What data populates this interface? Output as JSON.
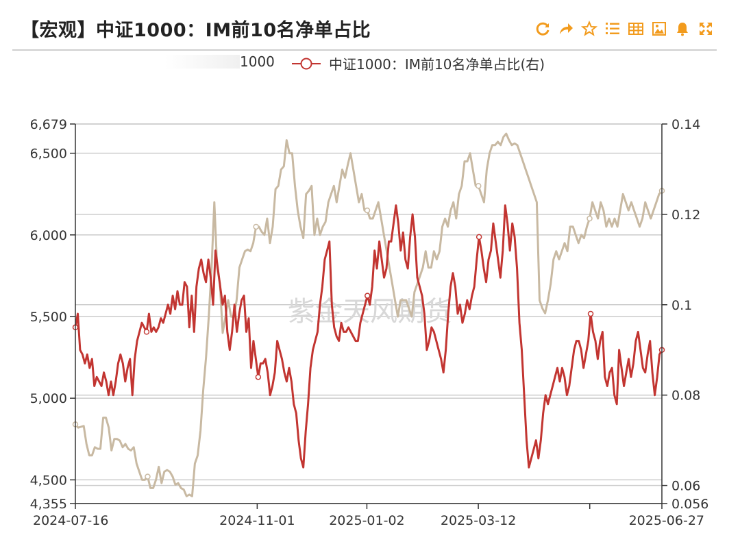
{
  "header": {
    "title": "【宏观】中证1000：IM前10名净单占比"
  },
  "toolbar": {
    "icons": [
      "refresh-icon",
      "share-icon",
      "star-icon",
      "ordered-list-icon",
      "table-icon",
      "image-icon",
      "bell-icon",
      "fullscreen-icon"
    ],
    "accent_color": "#f29b1d"
  },
  "legend": {
    "left_label": "1000",
    "right_label": "中证1000：IM前10名净单占比(右)"
  },
  "watermark": "紫金天风期货",
  "chart_data": {
    "type": "line",
    "x_ticks": [
      "2024-07-16",
      "2024-11-01",
      "2025-01-02",
      "2025-03-12",
      "2025-06-27"
    ],
    "y_left": {
      "ticks": [
        "6,679",
        "6,500",
        "6,000",
        "5,500",
        "5,000",
        "4,500",
        "4,355"
      ],
      "ylim": [
        4355,
        6679
      ]
    },
    "y_right": {
      "ticks": [
        "0.14",
        "0.12",
        "0.1",
        "0.08",
        "0.06",
        "0.056"
      ],
      "ylim": [
        0.056,
        0.14
      ]
    },
    "grid": true,
    "legend_position": "top",
    "series": [
      {
        "name": "1000",
        "axis": "left",
        "color": "#c8b9a2",
        "values": [
          4840,
          4820,
          4825,
          4830,
          4720,
          4650,
          4650,
          4700,
          4690,
          4690,
          4880,
          4880,
          4820,
          4680,
          4750,
          4750,
          4740,
          4700,
          4720,
          4690,
          4680,
          4700,
          4600,
          4550,
          4500,
          4500,
          4520,
          4450,
          4450,
          4500,
          4580,
          4480,
          4550,
          4560,
          4550,
          4520,
          4470,
          4480,
          4450,
          4440,
          4400,
          4410,
          4400,
          4600,
          4650,
          4800,
          5050,
          5250,
          5500,
          5800,
          6200,
          5800,
          5700,
          5400,
          5500,
          5600,
          5500,
          5500,
          5600,
          5800,
          5850,
          5900,
          5910,
          5900,
          5950,
          6050,
          6050,
          6020,
          6000,
          6100,
          5950,
          6050,
          6280,
          6300,
          6400,
          6420,
          6580,
          6500,
          6500,
          6300,
          6150,
          6050,
          5980,
          6250,
          6270,
          6300,
          6000,
          6100,
          6000,
          6050,
          6080,
          6200,
          6250,
          6300,
          6200,
          6300,
          6400,
          6350,
          6430,
          6500,
          6400,
          6300,
          6200,
          6250,
          6150,
          6150,
          6100,
          6100,
          6150,
          6200,
          6100,
          6000,
          5900,
          5800,
          5700,
          5600,
          5500,
          5600,
          5600,
          5600,
          5550,
          5500,
          5650,
          5700,
          5750,
          5800,
          5900,
          5800,
          5800,
          5900,
          5850,
          5900,
          6050,
          6100,
          6050,
          6150,
          6200,
          6100,
          6250,
          6300,
          6450,
          6450,
          6500,
          6400,
          6300,
          6300,
          6250,
          6200,
          6400,
          6500,
          6550,
          6550,
          6570,
          6550,
          6600,
          6620,
          6580,
          6550,
          6560,
          6550,
          6500,
          6450,
          6400,
          6350,
          6300,
          6250,
          6200,
          5600,
          5550,
          5520,
          5600,
          5700,
          5850,
          5900,
          5850,
          5900,
          5950,
          5900,
          6050,
          6050,
          6000,
          5950,
          6000,
          5980,
          6050,
          6100,
          6200,
          6150,
          6100,
          6200,
          6150,
          6050,
          6100,
          6050,
          6100,
          6050,
          6150,
          6250,
          6200,
          6150,
          6200,
          6150,
          6100,
          6050,
          6100,
          6200,
          6150,
          6100,
          6150,
          6200,
          6250,
          6270
        ]
      },
      {
        "name": "中证1000：IM前10名净单占比(右)",
        "axis": "right",
        "color": "#c23531",
        "values": [
          0.095,
          0.098,
          0.09,
          0.089,
          0.087,
          0.089,
          0.086,
          0.088,
          0.082,
          0.084,
          0.083,
          0.082,
          0.085,
          0.083,
          0.08,
          0.083,
          0.08,
          0.083,
          0.087,
          0.089,
          0.087,
          0.083,
          0.086,
          0.088,
          0.08,
          0.088,
          0.092,
          0.094,
          0.096,
          0.095,
          0.094,
          0.098,
          0.094,
          0.095,
          0.094,
          0.095,
          0.097,
          0.096,
          0.098,
          0.1,
          0.098,
          0.102,
          0.099,
          0.103,
          0.1,
          0.1,
          0.105,
          0.104,
          0.095,
          0.102,
          0.094,
          0.104,
          0.108,
          0.11,
          0.107,
          0.105,
          0.11,
          0.106,
          0.1,
          0.112,
          0.108,
          0.104,
          0.1,
          0.102,
          0.094,
          0.09,
          0.094,
          0.1,
          0.094,
          0.098,
          0.101,
          0.102,
          0.094,
          0.097,
          0.086,
          0.092,
          0.088,
          0.084,
          0.087,
          0.087,
          0.088,
          0.085,
          0.08,
          0.082,
          0.085,
          0.092,
          0.09,
          0.088,
          0.085,
          0.083,
          0.086,
          0.083,
          0.078,
          0.076,
          0.07,
          0.066,
          0.064,
          0.072,
          0.078,
          0.086,
          0.09,
          0.092,
          0.094,
          0.1,
          0.104,
          0.11,
          0.112,
          0.114,
          0.1,
          0.095,
          0.093,
          0.092,
          0.096,
          0.094,
          0.094,
          0.095,
          0.094,
          0.093,
          0.092,
          0.092,
          0.096,
          0.098,
          0.1,
          0.102,
          0.1,
          0.104,
          0.112,
          0.108,
          0.114,
          0.11,
          0.106,
          0.108,
          0.114,
          0.114,
          0.118,
          0.122,
          0.118,
          0.112,
          0.116,
          0.11,
          0.108,
          0.115,
          0.12,
          0.115,
          0.106,
          0.104,
          0.102,
          0.098,
          0.09,
          0.092,
          0.095,
          0.094,
          0.092,
          0.09,
          0.088,
          0.085,
          0.09,
          0.098,
          0.104,
          0.107,
          0.104,
          0.098,
          0.1,
          0.096,
          0.098,
          0.101,
          0.099,
          0.102,
          0.104,
          0.11,
          0.115,
          0.112,
          0.108,
          0.105,
          0.11,
          0.112,
          0.118,
          0.114,
          0.11,
          0.106,
          0.112,
          0.122,
          0.118,
          0.112,
          0.118,
          0.115,
          0.108,
          0.096,
          0.09,
          0.08,
          0.07,
          0.064,
          0.066,
          0.068,
          0.07,
          0.066,
          0.07,
          0.076,
          0.08,
          0.078,
          0.08,
          0.082,
          0.084,
          0.086,
          0.083,
          0.086,
          0.084,
          0.08,
          0.082,
          0.086,
          0.09,
          0.092,
          0.092,
          0.09,
          0.086,
          0.089,
          0.092,
          0.098,
          0.094,
          0.092,
          0.088,
          0.092,
          0.094,
          0.084,
          0.082,
          0.085,
          0.086,
          0.08,
          0.078,
          0.09,
          0.086,
          0.082,
          0.085,
          0.088,
          0.084,
          0.087,
          0.092,
          0.094,
          0.09,
          0.086,
          0.085,
          0.089,
          0.092,
          0.085,
          0.08,
          0.084,
          0.089,
          0.09
        ]
      }
    ]
  }
}
